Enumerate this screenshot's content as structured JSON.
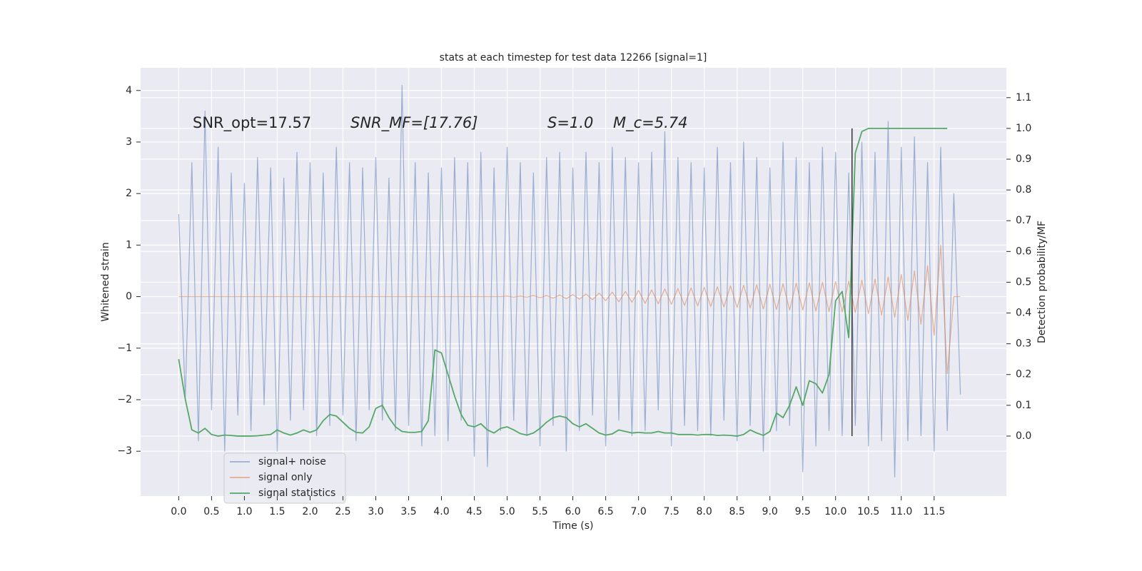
{
  "chart_data": {
    "type": "line",
    "title": "stats at each timestep for test data 12266 [signal=1]",
    "x_label": "Time (s)",
    "y_label": "Whitened strain",
    "y2_label": "Detection probability/MF",
    "annotations": [
      "SNR_opt=17.57",
      "SNR_MF=[17.76]",
      "S=1.0",
      "M_c=5.74"
    ],
    "grid": true,
    "legend": "lower left",
    "x": [
      0.0,
      0.1,
      0.2,
      0.3,
      0.4,
      0.5,
      0.6,
      0.7,
      0.8,
      0.9,
      1.0,
      1.1,
      1.2,
      1.3,
      1.4,
      1.5,
      1.6,
      1.7,
      1.8,
      1.9,
      2.0,
      2.1,
      2.2,
      2.3,
      2.4,
      2.5,
      2.6,
      2.7,
      2.8,
      2.9,
      3.0,
      3.1,
      3.2,
      3.3,
      3.4,
      3.5,
      3.6,
      3.7,
      3.8,
      3.9,
      4.0,
      4.1,
      4.2,
      4.3,
      4.4,
      4.5,
      4.6,
      4.7,
      4.8,
      4.9,
      5.0,
      5.1,
      5.2,
      5.3,
      5.4,
      5.5,
      5.6,
      5.7,
      5.8,
      5.9,
      6.0,
      6.1,
      6.2,
      6.3,
      6.4,
      6.5,
      6.6,
      6.7,
      6.8,
      6.9,
      7.0,
      7.1,
      7.2,
      7.3,
      7.4,
      7.5,
      7.6,
      7.7,
      7.8,
      7.9,
      8.0,
      8.1,
      8.2,
      8.3,
      8.4,
      8.5,
      8.6,
      8.7,
      8.8,
      8.9,
      9.0,
      9.1,
      9.2,
      9.3,
      9.4,
      9.5,
      9.6,
      9.7,
      9.8,
      9.9,
      10.0,
      10.1,
      10.2,
      10.3,
      10.4,
      10.5,
      10.6,
      10.7,
      10.8,
      10.9,
      11.0,
      11.1,
      11.2,
      11.3,
      11.4,
      11.5,
      11.6,
      11.7,
      11.8,
      11.9
    ],
    "series": [
      {
        "name": "signal+ noise",
        "color": "#4c72b0",
        "values": [
          1.6,
          -2.0,
          2.6,
          -2.8,
          3.6,
          -2.2,
          2.9,
          -3.0,
          2.4,
          -2.3,
          2.2,
          -2.6,
          2.7,
          -2.1,
          2.5,
          -3.0,
          2.3,
          -2.4,
          2.8,
          -2.2,
          2.6,
          -2.7,
          2.4,
          -2.5,
          2.9,
          -2.3,
          2.6,
          -2.8,
          2.5,
          -2.2,
          2.7,
          -2.4,
          2.3,
          -2.6,
          4.1,
          -2.5,
          2.6,
          -2.9,
          2.4,
          -2.7,
          2.5,
          -2.8,
          2.7,
          -2.4,
          2.6,
          -3.1,
          2.8,
          -3.3,
          2.5,
          -2.6,
          2.9,
          -2.4,
          2.6,
          -2.7,
          2.4,
          -2.9,
          2.7,
          -2.5,
          2.8,
          -3.0,
          2.5,
          -2.6,
          2.8,
          -2.3,
          2.6,
          -2.9,
          2.9,
          -2.4,
          2.7,
          -2.7,
          2.6,
          -2.6,
          2.8,
          -2.2,
          3.2,
          -2.9,
          2.7,
          -2.5,
          2.6,
          -2.6,
          2.5,
          -2.7,
          2.9,
          -2.4,
          2.6,
          -2.8,
          3.0,
          -2.5,
          2.7,
          -3.0,
          2.5,
          -2.6,
          3.0,
          -2.5,
          2.7,
          -3.4,
          2.6,
          -2.9,
          2.9,
          -2.6,
          2.8,
          -2.7,
          2.4,
          -2.5,
          3.0,
          -2.9,
          2.8,
          -2.8,
          3.4,
          -3.5,
          2.9,
          -2.8,
          3.1,
          -2.7,
          2.6,
          -3.0,
          2.9,
          -2.6,
          2.0,
          -1.9
        ]
      },
      {
        "name": "signal only",
        "color": "#dd8452",
        "values": [
          0,
          0,
          0,
          0,
          0,
          0,
          0,
          0,
          0,
          0,
          0,
          0,
          0,
          0,
          0,
          0,
          0,
          0,
          0,
          0,
          0,
          0,
          0,
          0,
          0,
          0,
          0,
          0,
          0,
          0,
          0,
          0,
          0,
          0,
          0,
          0,
          0,
          0,
          0,
          0,
          0,
          0,
          0,
          0,
          0,
          0,
          0,
          0,
          0,
          0,
          0.01,
          -0.01,
          0.01,
          -0.01,
          0.02,
          -0.02,
          0.02,
          -0.03,
          0.03,
          -0.04,
          0.04,
          -0.05,
          0.05,
          -0.06,
          0.07,
          -0.08,
          0.09,
          -0.1,
          0.1,
          -0.11,
          0.12,
          -0.13,
          0.13,
          -0.14,
          0.15,
          -0.15,
          0.16,
          -0.17,
          0.17,
          -0.18,
          0.18,
          -0.19,
          0.19,
          -0.2,
          0.21,
          -0.21,
          0.22,
          -0.22,
          0.23,
          -0.24,
          0.24,
          -0.25,
          0.25,
          -0.26,
          0.26,
          -0.26,
          0.27,
          -0.28,
          0.28,
          -0.29,
          0.29,
          -0.3,
          0.3,
          -0.31,
          0.32,
          -0.33,
          0.34,
          -0.36,
          0.38,
          -0.4,
          0.43,
          -0.46,
          0.5,
          -0.54,
          0.6,
          -0.75,
          1.0,
          -1.5,
          0,
          0
        ]
      },
      {
        "name": "signal statistics",
        "color": "#55a868",
        "axis": "y2",
        "values": [
          0.25,
          0.12,
          0.02,
          0.01,
          0.025,
          0.005,
          0.0,
          0.003,
          0.002,
          0.0,
          0.0,
          0.0,
          0.001,
          0.003,
          0.005,
          0.02,
          0.01,
          0.003,
          0.01,
          0.02,
          0.012,
          0.02,
          0.05,
          0.07,
          0.065,
          0.045,
          0.025,
          0.012,
          0.01,
          0.03,
          0.09,
          0.1,
          0.06,
          0.03,
          0.015,
          0.012,
          0.012,
          0.015,
          0.05,
          0.28,
          0.27,
          0.2,
          0.13,
          0.07,
          0.035,
          0.03,
          0.04,
          0.02,
          0.01,
          0.025,
          0.03,
          0.02,
          0.008,
          0.003,
          0.01,
          0.025,
          0.045,
          0.06,
          0.065,
          0.06,
          0.04,
          0.03,
          0.04,
          0.025,
          0.01,
          0.003,
          0.007,
          0.02,
          0.015,
          0.01,
          0.012,
          0.01,
          0.01,
          0.015,
          0.01,
          0.01,
          0.005,
          0.005,
          0.005,
          0.003,
          0.005,
          0.005,
          0.002,
          0.003,
          0.002,
          0.0,
          0.005,
          0.02,
          0.01,
          0.002,
          0.015,
          0.075,
          0.06,
          0.1,
          0.16,
          0.1,
          0.18,
          0.17,
          0.14,
          0.2,
          0.44,
          0.47,
          0.32,
          0.92,
          0.99,
          1.0,
          1.0,
          1.0,
          1.0,
          1.0,
          1.0,
          1.0,
          1.0,
          1.0,
          1.0,
          1.0,
          1.0,
          1.0,
          null,
          null
        ]
      }
    ],
    "vline": {
      "x": 10.25,
      "y2_range": [
        0,
        1.0
      ]
    },
    "xlim": [
      -0.58,
      12.6
    ],
    "ylim": [
      -3.87,
      4.44
    ],
    "y2lim": [
      -0.195,
      1.197
    ],
    "xticks": [
      {
        "value": 0,
        "label": "0.0"
      },
      0.5,
      {
        "value": 1,
        "label": "1.0"
      },
      1.5,
      {
        "value": 2,
        "label": "2.0"
      },
      2.5,
      {
        "value": 3,
        "label": "3.0"
      },
      3.5,
      {
        "value": 4,
        "label": "4.0"
      },
      4.5,
      {
        "value": 5,
        "label": "5.0"
      },
      5.5,
      {
        "value": 6,
        "label": "6.0"
      },
      6.5,
      {
        "value": 7,
        "label": "7.0"
      },
      7.5,
      {
        "value": 8,
        "label": "8.0"
      },
      8.5,
      {
        "value": 9,
        "label": "9.0"
      },
      9.5,
      {
        "value": 10,
        "label": "10.0"
      },
      10.5,
      {
        "value": 11,
        "label": "11.0"
      },
      11.5
    ],
    "yticks": [
      {
        "value": -3,
        "label": "−3"
      },
      {
        "value": -2,
        "label": "−2"
      },
      {
        "value": -1,
        "label": "−1"
      },
      0,
      1,
      2,
      3,
      4
    ],
    "y2ticks": [
      {
        "value": 0,
        "label": "0.0"
      },
      0.1,
      0.2,
      0.3,
      0.4,
      0.5,
      0.6,
      0.7,
      0.8,
      0.9,
      {
        "value": 1,
        "label": "1.0"
      },
      1.1
    ]
  }
}
